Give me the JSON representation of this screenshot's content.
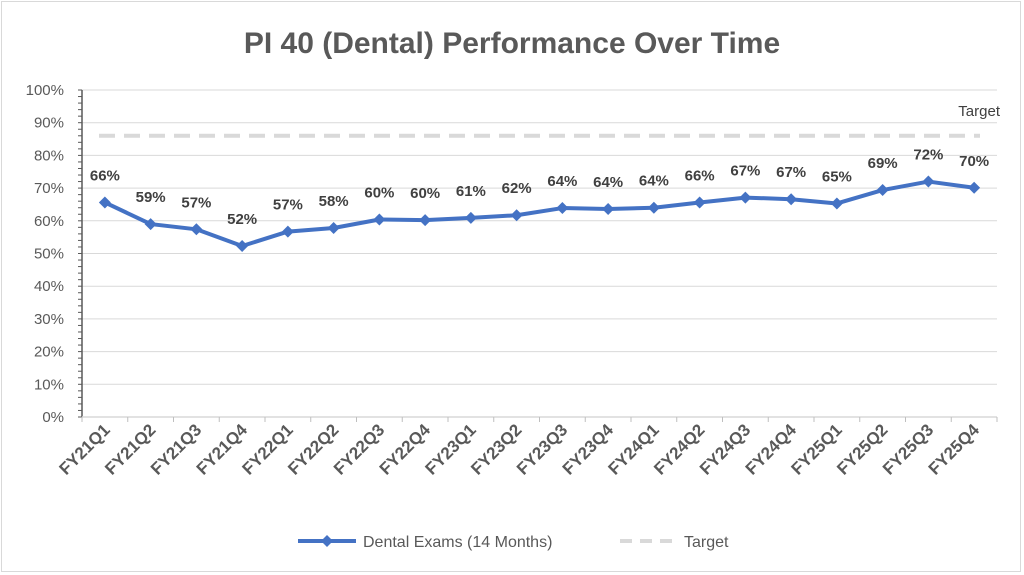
{
  "chart_data": {
    "type": "line",
    "title": "PI 40 (Dental) Performance Over Time",
    "xlabel": "",
    "ylabel": "",
    "ylim": [
      0,
      100
    ],
    "y_ticks": [
      "0%",
      "10%",
      "20%",
      "30%",
      "40%",
      "50%",
      "60%",
      "70%",
      "80%",
      "90%",
      "100%"
    ],
    "grid": true,
    "legend_position": "bottom",
    "categories": [
      "FY21Q1",
      "FY21Q2",
      "FY21Q3",
      "FY21Q4",
      "FY22Q1",
      "FY22Q2",
      "FY22Q3",
      "FY22Q4",
      "FY23Q1",
      "FY23Q2",
      "FY23Q3",
      "FY23Q4",
      "FY24Q1",
      "FY24Q2",
      "FY24Q3",
      "FY24Q4",
      "FY25Q1",
      "FY25Q2",
      "FY25Q3",
      "FY25Q4"
    ],
    "series": [
      {
        "name": "Dental Exams (14 Months)",
        "color": "#4472c4",
        "marker": "diamond",
        "values": [
          65.6,
          59.0,
          57.4,
          52.3,
          56.7,
          57.8,
          60.4,
          60.2,
          60.9,
          61.7,
          63.9,
          63.6,
          64.0,
          65.6,
          67.1,
          66.6,
          65.3,
          69.4,
          72.0,
          70.1
        ],
        "labels": [
          "66%",
          "59%",
          "57%",
          "52%",
          "57%",
          "58%",
          "60%",
          "60%",
          "61%",
          "62%",
          "64%",
          "64%",
          "64%",
          "66%",
          "67%",
          "67%",
          "65%",
          "69%",
          "72%",
          "70%"
        ]
      },
      {
        "name": "Target",
        "color": "#d9d9d9",
        "style": "dashed",
        "value": 86,
        "label": "Target"
      }
    ]
  }
}
